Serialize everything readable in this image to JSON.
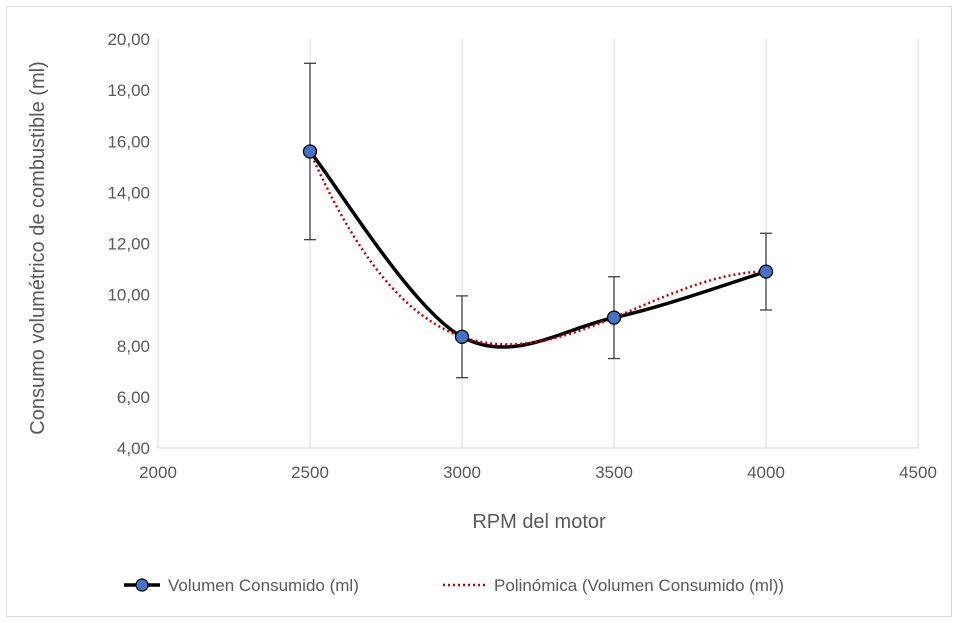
{
  "chart_data": {
    "type": "line",
    "xlabel": "RPM del motor",
    "ylabel": "Consumo volumétrico de combustible (ml)",
    "xlim": [
      2000,
      4500
    ],
    "ylim": [
      4,
      20
    ],
    "x_ticks": [
      "2000",
      "2500",
      "3000",
      "3500",
      "4000",
      "4500"
    ],
    "y_ticks": [
      "4,00",
      "6,00",
      "8,00",
      "10,00",
      "12,00",
      "14,00",
      "16,00",
      "18,00",
      "20,00"
    ],
    "grid": "vertical",
    "legend_position": "bottom",
    "series": [
      {
        "name": "Volumen Consumido (ml)",
        "style": "smooth-line-markers",
        "color": "#000000",
        "marker_color": "#4472C4",
        "x": [
          2500,
          3000,
          3500,
          4000
        ],
        "y": [
          15.6,
          8.35,
          9.1,
          10.9
        ],
        "error": [
          3.45,
          1.6,
          1.6,
          1.5
        ]
      },
      {
        "name": "Polinómica (Volumen Consumido (ml))",
        "style": "dotted-trendline",
        "color": "#C00000",
        "polynomial_points": {
          "x": [
            2500,
            3000,
            3500,
            4000
          ],
          "y": [
            15.6,
            8.35,
            9.1,
            10.9
          ]
        }
      }
    ]
  }
}
